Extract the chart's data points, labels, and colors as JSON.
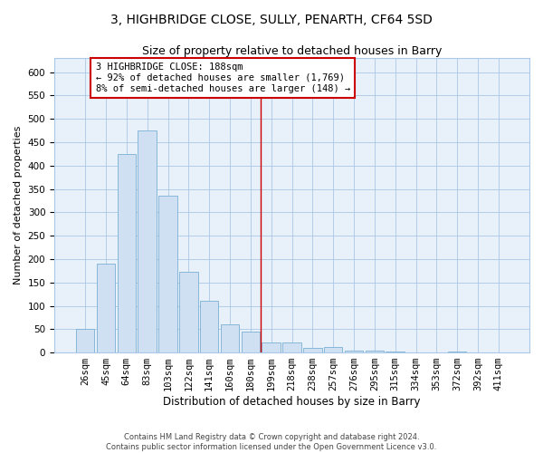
{
  "title": "3, HIGHBRIDGE CLOSE, SULLY, PENARTH, CF64 5SD",
  "subtitle": "Size of property relative to detached houses in Barry",
  "xlabel": "Distribution of detached houses by size in Barry",
  "ylabel": "Number of detached properties",
  "footer_line1": "Contains HM Land Registry data © Crown copyright and database right 2024.",
  "footer_line2": "Contains public sector information licensed under the Open Government Licence v3.0.",
  "bar_labels": [
    "26sqm",
    "45sqm",
    "64sqm",
    "83sqm",
    "103sqm",
    "122sqm",
    "141sqm",
    "160sqm",
    "180sqm",
    "199sqm",
    "218sqm",
    "238sqm",
    "257sqm",
    "276sqm",
    "295sqm",
    "315sqm",
    "334sqm",
    "353sqm",
    "372sqm",
    "392sqm",
    "411sqm"
  ],
  "bar_values": [
    50,
    190,
    425,
    475,
    335,
    172,
    110,
    60,
    45,
    22,
    22,
    10,
    12,
    5,
    5,
    2,
    0,
    0,
    2,
    0,
    0
  ],
  "bar_color": "#cfe0f3",
  "bar_edge_color": "#7aafd4",
  "grid_color": "#aac8e8",
  "bg_color": "#e8f0fa",
  "annotation_text": "3 HIGHBRIDGE CLOSE: 188sqm\n← 92% of detached houses are smaller (1,769)\n8% of semi-detached houses are larger (148) →",
  "vline_x": 8.5,
  "vline_color": "#cc0000",
  "annotation_box_color": "#ffffff",
  "annotation_box_edge": "#cc0000",
  "ylim": [
    0,
    630
  ],
  "yticks": [
    0,
    50,
    100,
    150,
    200,
    250,
    300,
    350,
    400,
    450,
    500,
    550,
    600
  ],
  "title_fontsize": 10,
  "subtitle_fontsize": 9,
  "axis_label_fontsize": 8.5,
  "tick_fontsize": 7.5,
  "annotation_fontsize": 7.5,
  "ylabel_fontsize": 8
}
